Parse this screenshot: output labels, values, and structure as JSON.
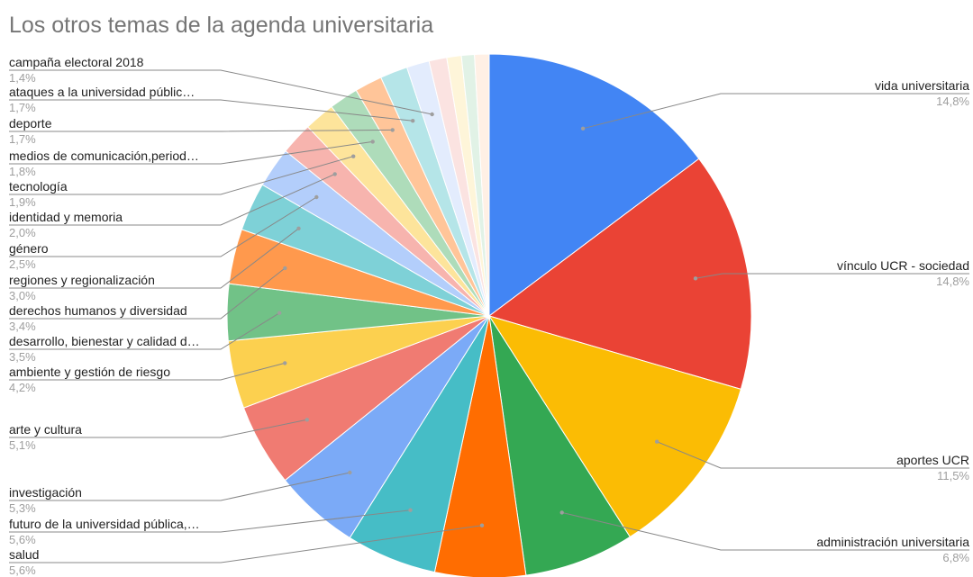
{
  "chart_data": {
    "type": "pie",
    "title": "Los otros temas de la agenda universitaria",
    "slices": [
      {
        "label": "vida universitaria",
        "value_label": "14,8%",
        "value": 14.8,
        "color": "#4285f4"
      },
      {
        "label": "vínculo UCR - sociedad",
        "value_label": "14,8%",
        "value": 14.8,
        "color": "#ea4335"
      },
      {
        "label": "aportes UCR",
        "value_label": "11,5%",
        "value": 11.5,
        "color": "#fbbc04"
      },
      {
        "label": "administración universitaria",
        "value_label": "6,8%",
        "value": 6.8,
        "color": "#34a853"
      },
      {
        "label": "salud",
        "value_label": "5,6%",
        "value": 5.6,
        "color": "#ff6d01"
      },
      {
        "label": "futuro de la universidad pública,…",
        "value_label": "5,6%",
        "value": 5.6,
        "color": "#46bdc6"
      },
      {
        "label": "investigación",
        "value_label": "5,3%",
        "value": 5.3,
        "color": "#7baaf7"
      },
      {
        "label": "arte y cultura",
        "value_label": "5,1%",
        "value": 5.1,
        "color": "#f07b72"
      },
      {
        "label": "ambiente y gestión de riesgo",
        "value_label": "4,2%",
        "value": 4.2,
        "color": "#fcd04f"
      },
      {
        "label": "desarrollo, bienestar y calidad d…",
        "value_label": "3,5%",
        "value": 3.5,
        "color": "#71c287"
      },
      {
        "label": "derechos humanos y diversidad",
        "value_label": "3,4%",
        "value": 3.4,
        "color": "#ff994d"
      },
      {
        "label": "regiones y regionalización",
        "value_label": "3,0%",
        "value": 3.0,
        "color": "#7ed1d7"
      },
      {
        "label": "género",
        "value_label": "2,5%",
        "value": 2.5,
        "color": "#b3cefb"
      },
      {
        "label": "identidad y memoria",
        "value_label": "2,0%",
        "value": 2.0,
        "color": "#f7b4ae"
      },
      {
        "label": "tecnología",
        "value_label": "1,9%",
        "value": 1.9,
        "color": "#fde49b"
      },
      {
        "label": "medios de comunicación,period…",
        "value_label": "1,8%",
        "value": 1.8,
        "color": "#aedcba"
      },
      {
        "label": "deporte",
        "value_label": "1,7%",
        "value": 1.7,
        "color": "#ffc599"
      },
      {
        "label": "ataques a la universidad públic…",
        "value_label": "1,7%",
        "value": 1.7,
        "color": "#b5e5e8"
      },
      {
        "label": "campaña electoral 2018",
        "value_label": "1,4%",
        "value": 1.4,
        "color": "#e3ecfd"
      },
      {
        "value": 1.1,
        "color": "#fbe3e1"
      },
      {
        "value": 0.9,
        "color": "#fef5d9"
      },
      {
        "value": 0.8,
        "color": "#e1f2e6"
      },
      {
        "value": 0.9,
        "color": "#fff0e5"
      }
    ]
  }
}
